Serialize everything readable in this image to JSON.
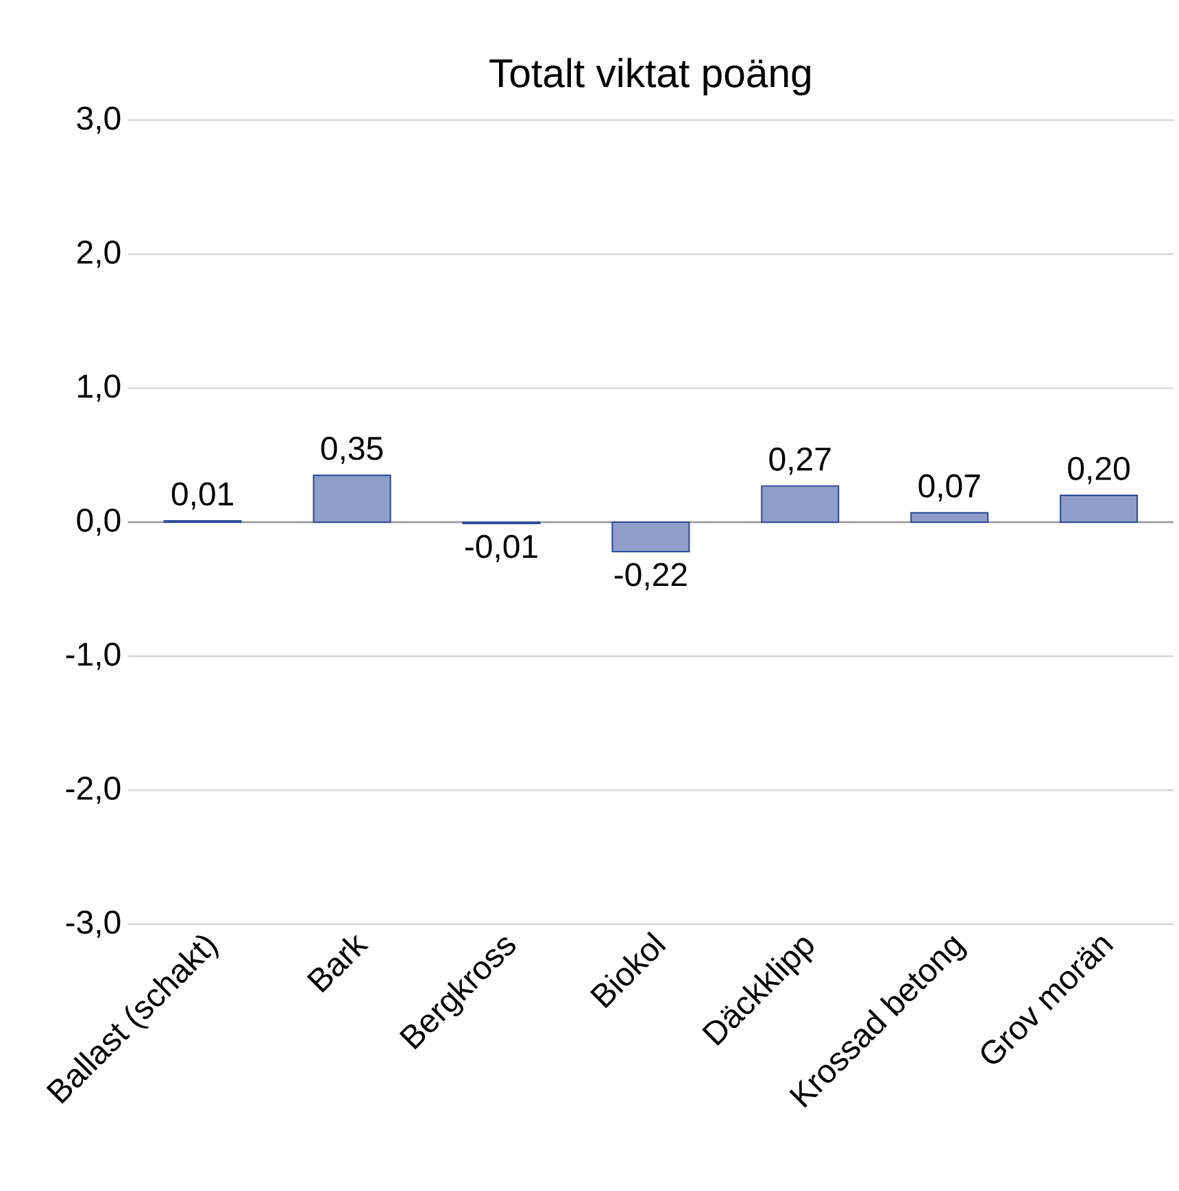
{
  "chart_data": {
    "type": "bar",
    "title": "Totalt viktat poäng",
    "categories": [
      "Ballast (schakt)",
      "Bark",
      "Bergkross",
      "Biokol",
      "Däckklipp",
      "Krossad betong",
      "Grov morän"
    ],
    "values": [
      0.01,
      0.35,
      -0.01,
      -0.22,
      0.27,
      0.07,
      0.2
    ],
    "value_labels": [
      "0,01",
      "0,35",
      "-0,01",
      "-0,22",
      "0,27",
      "0,07",
      "0,20"
    ],
    "color": "#8f9dcb",
    "ylim": [
      -3,
      3
    ],
    "yticks": [
      {
        "value": -3,
        "label": "-3,0"
      },
      {
        "value": -2,
        "label": "-2,0"
      },
      {
        "value": -1,
        "label": "-1,0"
      },
      {
        "value": 0,
        "label": "0,0"
      },
      {
        "value": 1,
        "label": "1,0"
      },
      {
        "value": 2,
        "label": "2,0"
      },
      {
        "value": 3,
        "label": "3,0"
      }
    ],
    "grid": "y"
  }
}
